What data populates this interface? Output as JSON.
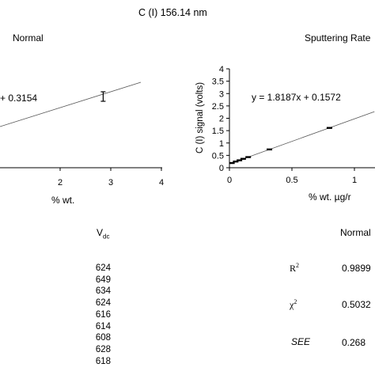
{
  "figure": {
    "title": "C (I) 156.14 nm"
  },
  "chart_data": [
    {
      "type": "scatter",
      "title": "Normal",
      "xlabel": "% wt.",
      "ylabel": "",
      "xlim": [
        0,
        4
      ],
      "x_ticks": [
        "2",
        "3",
        "4"
      ],
      "equation": "+ 0.3154",
      "points": [
        {
          "x": 2.85,
          "y": 1.05,
          "err": 0.08
        }
      ],
      "fit_line": {
        "x_start": 0.0,
        "x_end": 3.6
      }
    },
    {
      "type": "scatter",
      "title": "Sputtering Rate",
      "xlabel": "% wt. µg/r",
      "ylabel": "C (I) signal (volts)",
      "xlim": [
        0,
        1.1
      ],
      "ylim": [
        0,
        4
      ],
      "y_ticks": [
        "0",
        "0.5",
        "1",
        "1.5",
        "2",
        "2.5",
        "3",
        "3.5",
        "4"
      ],
      "x_ticks": [
        "0",
        "0.5",
        "1"
      ],
      "equation": "y = 1.8187x + 0.1572",
      "slope": 1.8187,
      "intercept": 0.1572,
      "points": [
        {
          "x": 0.02,
          "y": 0.19
        },
        {
          "x": 0.05,
          "y": 0.25
        },
        {
          "x": 0.08,
          "y": 0.3
        },
        {
          "x": 0.11,
          "y": 0.36
        },
        {
          "x": 0.15,
          "y": 0.43
        },
        {
          "x": 0.32,
          "y": 0.74
        },
        {
          "x": 0.8,
          "y": 1.61
        }
      ]
    }
  ],
  "table": {
    "vdc_header": "V",
    "vdc_header_sub": "dc",
    "vdc_values": [
      "624",
      "649",
      "634",
      "624",
      "616",
      "614",
      "608",
      "628",
      "618"
    ],
    "stats_header": "Normal",
    "stats": [
      {
        "label": "R",
        "sup": "2",
        "value": "0.9899"
      },
      {
        "label": "χ",
        "sup": "2",
        "value": "0.5032"
      },
      {
        "label": "SEE",
        "sup": "",
        "value": "0.268"
      }
    ]
  }
}
